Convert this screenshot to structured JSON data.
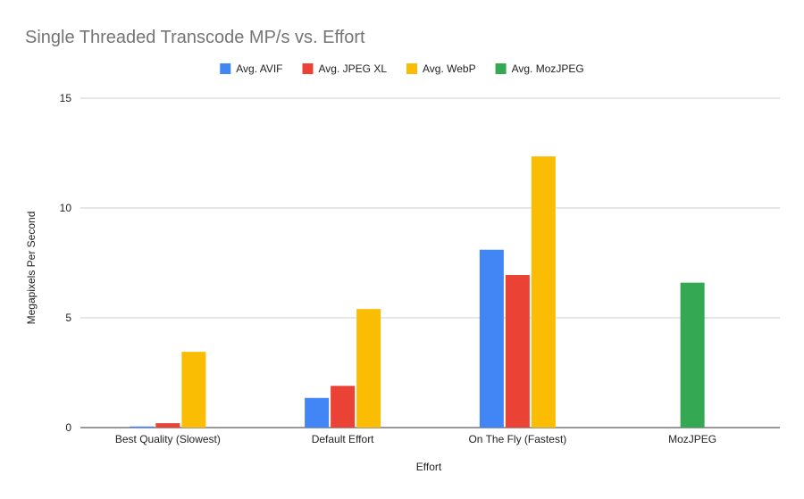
{
  "chart_data": {
    "type": "bar",
    "title": "Single Threaded Transcode MP/s vs. Effort",
    "xlabel": "Effort",
    "ylabel": "Megapixels Per Second",
    "ylim": [
      0,
      15
    ],
    "yticks": [
      0,
      5,
      10,
      15
    ],
    "grid": true,
    "legend_position": "top",
    "categories": [
      "Best Quality (Slowest)",
      "Default Effort",
      "On The Fly (Fastest)",
      "MozJPEG"
    ],
    "series": [
      {
        "name": "Avg. AVIF",
        "color": "#4285f4",
        "values": [
          0.05,
          1.35,
          8.1,
          null
        ]
      },
      {
        "name": "Avg. JPEG XL",
        "color": "#ea4335",
        "values": [
          0.2,
          1.9,
          6.95,
          null
        ]
      },
      {
        "name": "Avg. WebP",
        "color": "#fbbc04",
        "values": [
          3.45,
          5.4,
          12.35,
          null
        ]
      },
      {
        "name": "Avg. MozJPEG",
        "color": "#34a853",
        "values": [
          null,
          null,
          null,
          6.6
        ]
      }
    ]
  }
}
